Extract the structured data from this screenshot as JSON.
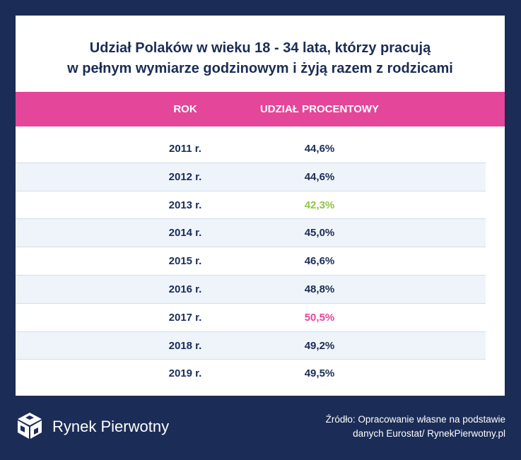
{
  "chart_data": {
    "type": "table",
    "title_line1": "Udział Polaków w wieku 18 - 34 lata, którzy pracują",
    "title_line2": "w pełnym wymiarze godzinowym i żyją razem z rodzicami",
    "columns": [
      "ROK",
      "UDZIAŁ PROCENTOWY"
    ],
    "categories": [
      "2011 r.",
      "2012 r.",
      "2013 r.",
      "2014 r.",
      "2015 r.",
      "2016 r.",
      "2017 r.",
      "2018 r.",
      "2019 r."
    ],
    "values": [
      44.6,
      44.6,
      42.3,
      45.0,
      46.6,
      48.8,
      50.5,
      49.2,
      49.5
    ],
    "value_labels": [
      "44,6%",
      "44,6%",
      "42,3%",
      "45,0%",
      "46,6%",
      "48,8%",
      "50,5%",
      "49,2%",
      "49,5%"
    ],
    "highlight_colors": {
      "default": "#1b2c56",
      "min": "#8dc63f",
      "max": "#e4469a"
    },
    "min_index": 2,
    "max_index": 6
  },
  "brand": {
    "name": "Rynek Pierwotny",
    "logo_icon": "cube-logo-icon"
  },
  "source": {
    "line1": "Źródło: Opracowanie własne na podstawie",
    "line2": "danych Eurostat/ RynekPierwotny.pl"
  },
  "colors": {
    "background": "#1b2c56",
    "header": "#e4469a",
    "row_alt": "#eef4fa"
  }
}
